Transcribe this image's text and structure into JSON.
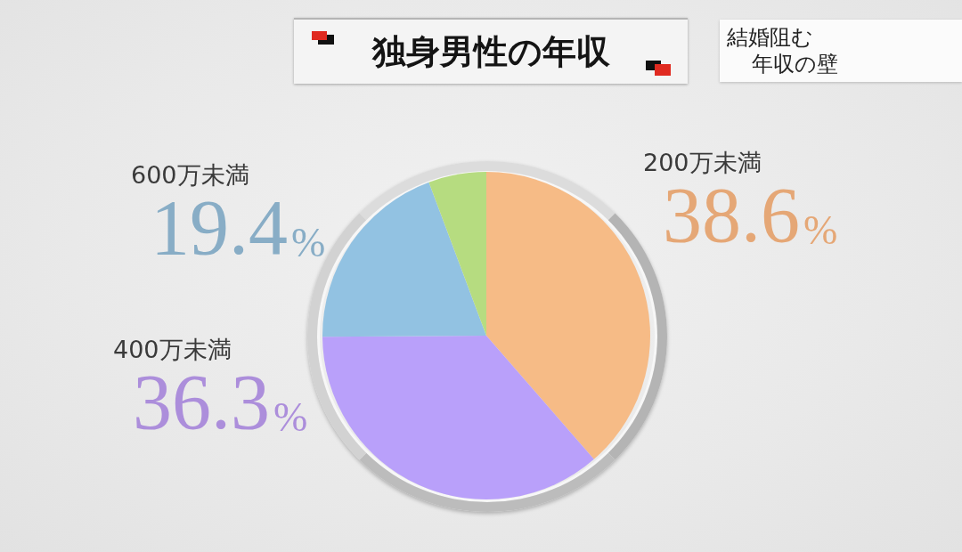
{
  "chart_data": {
    "type": "pie",
    "title": "独身男性の年収",
    "subtitle": "結婚阻む年収の壁",
    "categories": [
      "200万未満",
      "400万未満",
      "600万未満",
      null
    ],
    "values": [
      38.6,
      36.3,
      19.4,
      5.7
    ],
    "colors": [
      "#f6bb86",
      "#b9a0fa",
      "#92c2e2",
      "#b6dc80"
    ],
    "value_labels": [
      "38.6%",
      "36.3%",
      "19.4%",
      null
    ]
  }
}
